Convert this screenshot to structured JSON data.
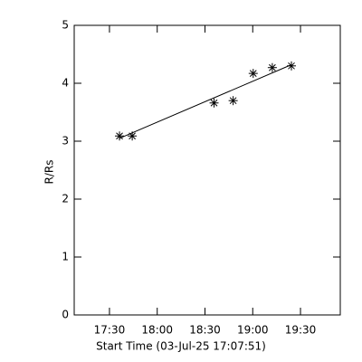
{
  "chart_data": {
    "type": "scatter",
    "xlabel": "Start Time (03-Jul-25 17:07:51)",
    "ylabel": "R/Rs",
    "xlim": [
      1027.85,
      1195
    ],
    "ylim": [
      0,
      5
    ],
    "xticks": [
      {
        "value": 1050,
        "label": "17:30"
      },
      {
        "value": 1080,
        "label": "18:00"
      },
      {
        "value": 1110,
        "label": "18:30"
      },
      {
        "value": 1140,
        "label": "19:00"
      },
      {
        "value": 1170,
        "label": "19:30"
      }
    ],
    "yticks": [
      0,
      1,
      2,
      3,
      4,
      5
    ],
    "series": [
      {
        "color": "#000000",
        "x": [
          1056.3,
          1064.3,
          1115.7,
          1127.7,
          1140.3,
          1152.3,
          1164.3
        ],
        "values": [
          3.09,
          3.09,
          3.66,
          3.7,
          4.17,
          4.27,
          4.3
        ]
      }
    ],
    "fit": {
      "color": "#000000",
      "x": [
        1056.3,
        1164.3
      ],
      "values": [
        3.05,
        4.32
      ]
    }
  }
}
